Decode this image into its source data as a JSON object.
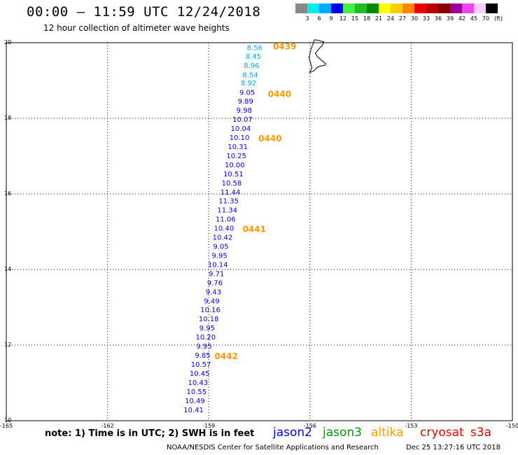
{
  "header": {
    "title": "00:00 – 11:59 UTC 12/24/2018",
    "subtitle": "12 hour collection of altimeter wave heights"
  },
  "color_scale": {
    "labels": [
      "3",
      "6",
      "9",
      "12",
      "15",
      "18",
      "21",
      "24",
      "27",
      "30",
      "33",
      "36",
      "39",
      "42",
      "45",
      "70"
    ],
    "colors": [
      "#888888",
      "#00eeee",
      "#00aaff",
      "#0000ee",
      "#44ee44",
      "#22bb22",
      "#008800",
      "#ffff00",
      "#ffcc00",
      "#ff8800",
      "#ee0000",
      "#bb0000",
      "#880000",
      "#990099",
      "#ee44ee",
      "#ffccff",
      "#000000"
    ],
    "unit": "(ft)"
  },
  "chart_data": {
    "type": "map",
    "lon_range": [
      -165,
      -150
    ],
    "lat_range": [
      10,
      20
    ],
    "x_ticks": [
      "-165",
      "-162",
      "-159",
      "-156",
      "-153",
      "-150"
    ],
    "y_ticks": [
      "20",
      "18",
      "16",
      "14",
      "12",
      "10"
    ],
    "grid": true,
    "swh_points": [
      {
        "lat": 19.88,
        "lon": -157.64,
        "swh": "8.56",
        "color": "#00aaff"
      },
      {
        "lat": 19.65,
        "lon": -157.68,
        "swh": "8.45",
        "color": "#00aaff"
      },
      {
        "lat": 19.41,
        "lon": -157.73,
        "swh": "8.96",
        "color": "#00aaff"
      },
      {
        "lat": 19.16,
        "lon": -157.77,
        "swh": "8.54",
        "color": "#00aaff"
      },
      {
        "lat": 18.94,
        "lon": -157.82,
        "swh": "8.92",
        "color": "#00aaff"
      },
      {
        "lat": 18.69,
        "lon": -157.86,
        "swh": "9.05",
        "color": "#0000ee"
      },
      {
        "lat": 18.46,
        "lon": -157.91,
        "swh": "9.89",
        "color": "#0000ee"
      },
      {
        "lat": 18.22,
        "lon": -157.95,
        "swh": "9.98",
        "color": "#0000ee"
      },
      {
        "lat": 17.98,
        "lon": -158.0,
        "swh": "10.07",
        "color": "#0000ee"
      },
      {
        "lat": 17.74,
        "lon": -158.05,
        "swh": "10.04",
        "color": "#0000ee"
      },
      {
        "lat": 17.5,
        "lon": -158.09,
        "swh": "10.10",
        "color": "#0000ee"
      },
      {
        "lat": 17.26,
        "lon": -158.14,
        "swh": "10.31",
        "color": "#0000ee"
      },
      {
        "lat": 17.02,
        "lon": -158.18,
        "swh": "10.25",
        "color": "#0000ee"
      },
      {
        "lat": 16.78,
        "lon": -158.23,
        "swh": "10.00",
        "color": "#0000ee"
      },
      {
        "lat": 16.54,
        "lon": -158.27,
        "swh": "10.51",
        "color": "#0000ee"
      },
      {
        "lat": 16.3,
        "lon": -158.32,
        "swh": "10.58",
        "color": "#0000ee"
      },
      {
        "lat": 16.06,
        "lon": -158.36,
        "swh": "11.44",
        "color": "#0000ee"
      },
      {
        "lat": 15.82,
        "lon": -158.41,
        "swh": "11.35",
        "color": "#0000ee"
      },
      {
        "lat": 15.58,
        "lon": -158.45,
        "swh": "11.34",
        "color": "#0000ee"
      },
      {
        "lat": 15.34,
        "lon": -158.5,
        "swh": "11.06",
        "color": "#0000ee"
      },
      {
        "lat": 15.1,
        "lon": -158.55,
        "swh": "10.40",
        "color": "#0000ee"
      },
      {
        "lat": 14.86,
        "lon": -158.59,
        "swh": "10.42",
        "color": "#0000ee"
      },
      {
        "lat": 14.62,
        "lon": -158.64,
        "swh": "9.05",
        "color": "#0000ee"
      },
      {
        "lat": 14.38,
        "lon": -158.68,
        "swh": "9.95",
        "color": "#0000ee"
      },
      {
        "lat": 14.14,
        "lon": -158.73,
        "swh": "10.14",
        "color": "#0000ee"
      },
      {
        "lat": 13.9,
        "lon": -158.77,
        "swh": "9.71",
        "color": "#0000ee"
      },
      {
        "lat": 13.66,
        "lon": -158.82,
        "swh": "9.76",
        "color": "#0000ee"
      },
      {
        "lat": 13.42,
        "lon": -158.86,
        "swh": "9.43",
        "color": "#0000ee"
      },
      {
        "lat": 13.18,
        "lon": -158.91,
        "swh": "9.49",
        "color": "#0000ee"
      },
      {
        "lat": 12.94,
        "lon": -158.95,
        "swh": "10.16",
        "color": "#0000ee"
      },
      {
        "lat": 12.7,
        "lon": -159.0,
        "swh": "10.18",
        "color": "#0000ee"
      },
      {
        "lat": 12.46,
        "lon": -159.05,
        "swh": "9.95",
        "color": "#0000ee"
      },
      {
        "lat": 12.22,
        "lon": -159.09,
        "swh": "10.20",
        "color": "#0000ee"
      },
      {
        "lat": 11.98,
        "lon": -159.14,
        "swh": "9.95",
        "color": "#0000ee"
      },
      {
        "lat": 11.74,
        "lon": -159.18,
        "swh": "9.85",
        "color": "#0000ee"
      },
      {
        "lat": 11.5,
        "lon": -159.23,
        "swh": "10.57",
        "color": "#0000ee"
      },
      {
        "lat": 11.26,
        "lon": -159.27,
        "swh": "10.45",
        "color": "#0000ee"
      },
      {
        "lat": 11.02,
        "lon": -159.32,
        "swh": "10.43",
        "color": "#0000ee"
      },
      {
        "lat": 10.78,
        "lon": -159.36,
        "swh": "10.55",
        "color": "#0000ee"
      },
      {
        "lat": 10.54,
        "lon": -159.41,
        "swh": "10.49",
        "color": "#0000ee"
      },
      {
        "lat": 10.3,
        "lon": -159.45,
        "swh": "10.41",
        "color": "#0000ee"
      }
    ],
    "time_marks": [
      {
        "lat": 19.92,
        "lon": -156.75,
        "label": "0439"
      },
      {
        "lat": 18.66,
        "lon": -156.9,
        "label": "0440"
      },
      {
        "lat": 17.48,
        "lon": -157.18,
        "label": "0440"
      },
      {
        "lat": 15.08,
        "lon": -157.65,
        "label": "0441"
      },
      {
        "lat": 11.72,
        "lon": -158.48,
        "label": "0442"
      }
    ],
    "time_mark_color": "#ff9900",
    "coastline": [
      [
        -155.87,
        20.08
      ],
      [
        -155.74,
        20.06
      ],
      [
        -155.59,
        20.02
      ],
      [
        -155.63,
        19.93
      ],
      [
        -155.7,
        19.87
      ],
      [
        -155.79,
        19.78
      ],
      [
        -155.84,
        19.72
      ],
      [
        -155.78,
        19.63
      ],
      [
        -155.53,
        19.44
      ],
      [
        -155.56,
        19.4
      ],
      [
        -155.7,
        19.38
      ],
      [
        -155.78,
        19.35
      ],
      [
        -155.89,
        19.25
      ],
      [
        -156.01,
        19.21
      ],
      [
        -155.94,
        19.33
      ],
      [
        -155.98,
        19.46
      ],
      [
        -156.03,
        19.6
      ],
      [
        -155.99,
        19.75
      ],
      [
        -155.96,
        19.85
      ],
      [
        -155.91,
        19.96
      ],
      [
        -155.87,
        20.08
      ]
    ],
    "coastline_color": "#000000"
  },
  "footer": {
    "note": "note: 1) Time is in UTC; 2) SWH is in feet",
    "missions": [
      {
        "name": "jason2",
        "color": "#0000ee"
      },
      {
        "name": "jason3",
        "color": "#009900"
      },
      {
        "name": "altika",
        "color": "#ff9900"
      },
      {
        "name": "cryosat",
        "color": "#ee0000"
      },
      {
        "name": "s3a",
        "color": "#cc0000"
      }
    ],
    "credit": "NOAA/NESDIS Center for Satellite Applications and Research",
    "timestamp": "Dec 25 13:27:16 UTC 2018"
  }
}
